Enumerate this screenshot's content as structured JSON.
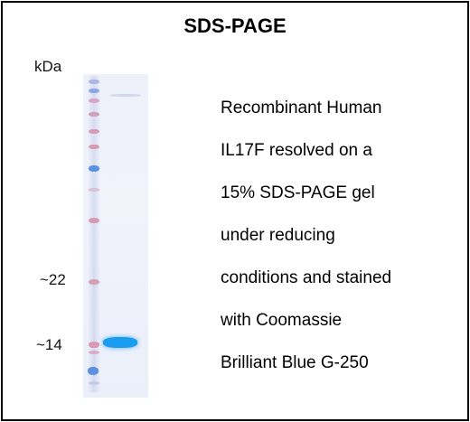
{
  "title": "SDS-PAGE",
  "unit_label": "kDa",
  "markers": [
    {
      "label": "~22"
    },
    {
      "label": "~14"
    }
  ],
  "description_lines": [
    "Recombinant Human",
    "IL17F resolved on a",
    "15% SDS-PAGE gel",
    "under reducing",
    "conditions and stained",
    "with Coomassie",
    "Brilliant Blue G-250"
  ],
  "colors": {
    "marker_pink": "#d9a0b4",
    "marker_blue": "#5b8fe0",
    "sample_band": "#1a9cf0",
    "border": "#000000"
  }
}
